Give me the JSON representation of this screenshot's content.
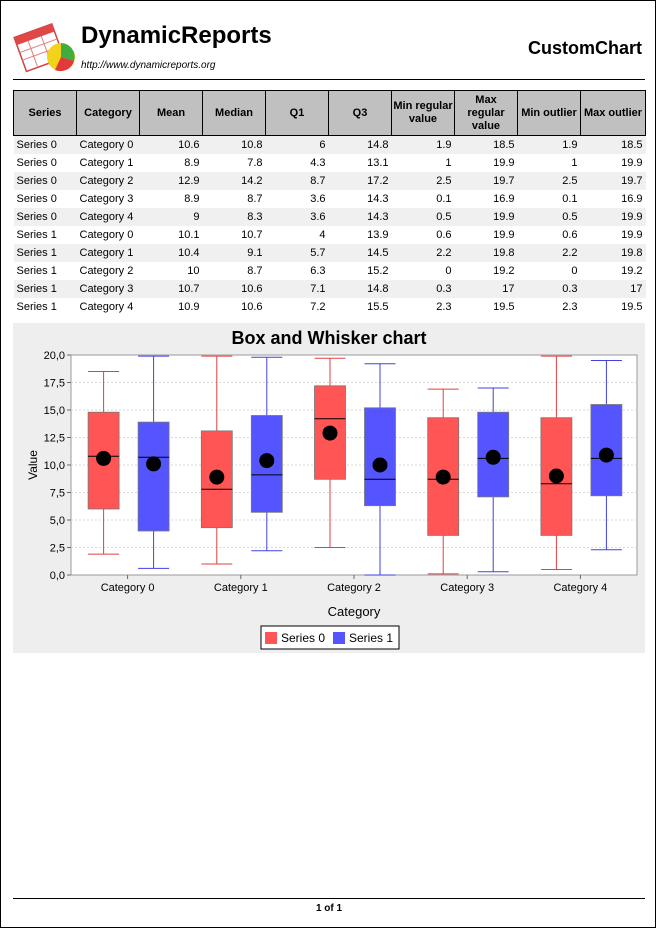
{
  "header": {
    "brand": "DynamicReports",
    "url": "http://www.dynamicreports.org",
    "title": "CustomChart"
  },
  "table": {
    "columns": [
      "Series",
      "Category",
      "Mean",
      "Median",
      "Q1",
      "Q3",
      "Min regular value",
      "Max regular value",
      "Min outlier",
      "Max outlier"
    ],
    "rows": [
      [
        "Series 0",
        "Category 0",
        "10.6",
        "10.8",
        "6",
        "14.8",
        "1.9",
        "18.5",
        "1.9",
        "18.5"
      ],
      [
        "Series 0",
        "Category 1",
        "8.9",
        "7.8",
        "4.3",
        "13.1",
        "1",
        "19.9",
        "1",
        "19.9"
      ],
      [
        "Series 0",
        "Category 2",
        "12.9",
        "14.2",
        "8.7",
        "17.2",
        "2.5",
        "19.7",
        "2.5",
        "19.7"
      ],
      [
        "Series 0",
        "Category 3",
        "8.9",
        "8.7",
        "3.6",
        "14.3",
        "0.1",
        "16.9",
        "0.1",
        "16.9"
      ],
      [
        "Series 0",
        "Category 4",
        "9",
        "8.3",
        "3.6",
        "14.3",
        "0.5",
        "19.9",
        "0.5",
        "19.9"
      ],
      [
        "Series 1",
        "Category 0",
        "10.1",
        "10.7",
        "4",
        "13.9",
        "0.6",
        "19.9",
        "0.6",
        "19.9"
      ],
      [
        "Series 1",
        "Category 1",
        "10.4",
        "9.1",
        "5.7",
        "14.5",
        "2.2",
        "19.8",
        "2.2",
        "19.8"
      ],
      [
        "Series 1",
        "Category 2",
        "10",
        "8.7",
        "6.3",
        "15.2",
        "0",
        "19.2",
        "0",
        "19.2"
      ],
      [
        "Series 1",
        "Category 3",
        "10.7",
        "10.6",
        "7.1",
        "14.8",
        "0.3",
        "17",
        "0.3",
        "17"
      ],
      [
        "Series 1",
        "Category 4",
        "10.9",
        "10.6",
        "7.2",
        "15.5",
        "2.3",
        "19.5",
        "2.3",
        "19.5"
      ]
    ]
  },
  "chart_data": {
    "type": "box",
    "title": "Box and Whisker chart",
    "xlabel": "Category",
    "ylabel": "Value",
    "ylim": [
      0,
      20
    ],
    "yticks": [
      "0,0",
      "2,5",
      "5,0",
      "7,5",
      "10,0",
      "12,5",
      "15,0",
      "17,5",
      "20,0"
    ],
    "categories": [
      "Category 0",
      "Category 1",
      "Category 2",
      "Category 3",
      "Category 4"
    ],
    "grid": true,
    "legend": "bottom",
    "series": [
      {
        "name": "Series 0",
        "color": "#ff5555",
        "stroke": "#e04040",
        "boxes": [
          {
            "mean": 10.6,
            "median": 10.8,
            "q1": 6,
            "q3": 14.8,
            "min": 1.9,
            "max": 18.5
          },
          {
            "mean": 8.9,
            "median": 7.8,
            "q1": 4.3,
            "q3": 13.1,
            "min": 1,
            "max": 19.9
          },
          {
            "mean": 12.9,
            "median": 14.2,
            "q1": 8.7,
            "q3": 17.2,
            "min": 2.5,
            "max": 19.7
          },
          {
            "mean": 8.9,
            "median": 8.7,
            "q1": 3.6,
            "q3": 14.3,
            "min": 0.1,
            "max": 16.9
          },
          {
            "mean": 9,
            "median": 8.3,
            "q1": 3.6,
            "q3": 14.3,
            "min": 0.5,
            "max": 19.9
          }
        ]
      },
      {
        "name": "Series 1",
        "color": "#5555ff",
        "stroke": "#4040e0",
        "boxes": [
          {
            "mean": 10.1,
            "median": 10.7,
            "q1": 4,
            "q3": 13.9,
            "min": 0.6,
            "max": 19.9
          },
          {
            "mean": 10.4,
            "median": 9.1,
            "q1": 5.7,
            "q3": 14.5,
            "min": 2.2,
            "max": 19.8
          },
          {
            "mean": 10,
            "median": 8.7,
            "q1": 6.3,
            "q3": 15.2,
            "min": 0,
            "max": 19.2
          },
          {
            "mean": 10.7,
            "median": 10.6,
            "q1": 7.1,
            "q3": 14.8,
            "min": 0.3,
            "max": 17
          },
          {
            "mean": 10.9,
            "median": 10.6,
            "q1": 7.2,
            "q3": 15.5,
            "min": 2.3,
            "max": 19.5
          }
        ]
      }
    ]
  },
  "footer": {
    "page": "1 of 1"
  }
}
